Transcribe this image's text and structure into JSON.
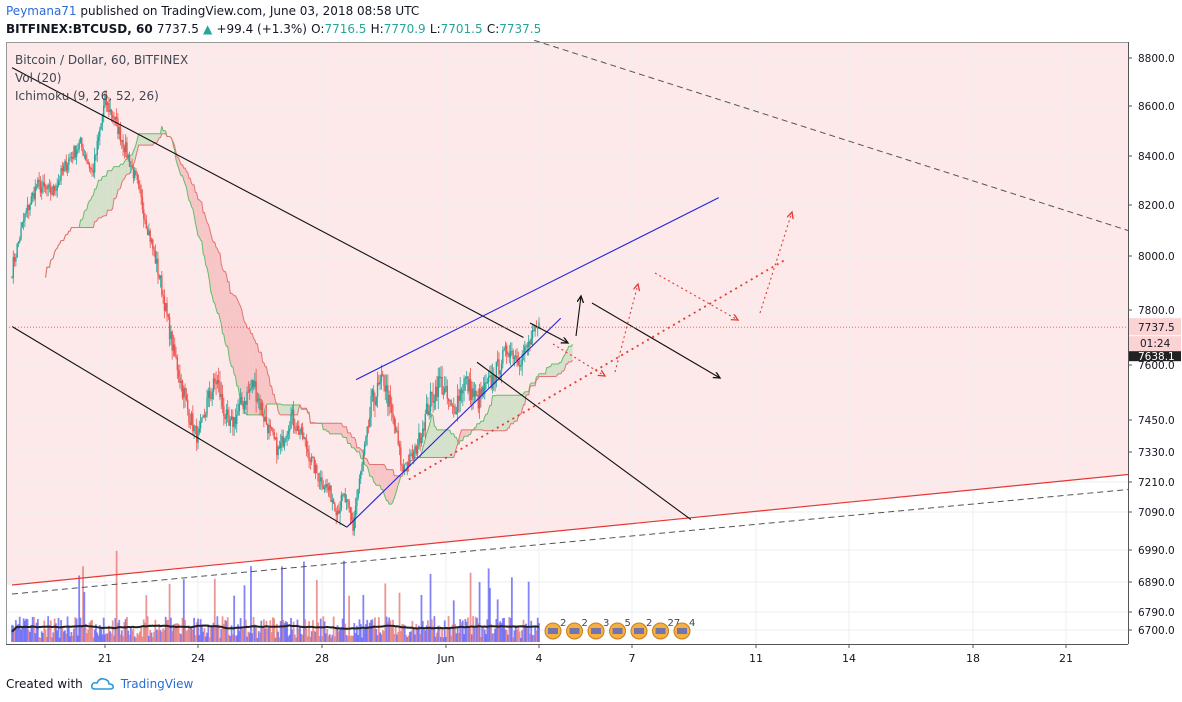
{
  "header": {
    "author": "Peymana71",
    "published": "published on TradingView.com, June 03, 2018 08:58 UTC",
    "symbol": "BITFINEX:BTCUSD, 60",
    "last": "7737.5",
    "change_arrow": "▲",
    "change": "+99.4 (+1.3%)",
    "open_label": "O:",
    "open": "7716.5",
    "high_label": "H:",
    "high": "7770.9",
    "low_label": "L:",
    "low": "7701.5",
    "close_label": "C:",
    "close": "7737.5"
  },
  "legend": {
    "line1": "Bitcoin / Dollar, 60, BITFINEX",
    "line2": "Vol (20)",
    "line3": "Ichimoku (9, 26, 52, 26)"
  },
  "chart_data": {
    "type": "line",
    "series_names": [
      "Bitcoin / Dollar, 60, BITFINEX",
      "Vol (20)",
      "Ichimoku (9, 26, 52, 26)"
    ],
    "price_axis_labels": [
      8800,
      8600,
      8400,
      8200,
      8000,
      7800,
      7600,
      7450,
      7330,
      7210,
      7090,
      6990,
      6890,
      6790,
      6700
    ],
    "price_axis_text": [
      "8800.0",
      "8600.0",
      "8400.0",
      "8200.0",
      "8000.0",
      "7800.0",
      "7600.0",
      "7450.0",
      "7330.0",
      "7210.0",
      "7090.0",
      "6990.0",
      "6890.0",
      "6790.0",
      "6700.0"
    ],
    "last_price_label": "7737.5",
    "countdown_label": "01:24",
    "other_price_label": "7638.1",
    "x_ticks": [
      "21",
      "24",
      "28",
      "Jun",
      "4",
      "7",
      "11",
      "14",
      "18",
      "21"
    ],
    "x_tick_pos": [
      2,
      5,
      9,
      13,
      16,
      19,
      23,
      26,
      30,
      33
    ],
    "close_path": [
      {
        "d": -1.0,
        "p": 7950
      },
      {
        "d": -0.6,
        "p": 8150
      },
      {
        "d": -0.2,
        "p": 8280
      },
      {
        "d": 0.3,
        "p": 8250
      },
      {
        "d": 0.8,
        "p": 8380
      },
      {
        "d": 1.2,
        "p": 8450
      },
      {
        "d": 1.6,
        "p": 8330
      },
      {
        "d": 2.0,
        "p": 8620
      },
      {
        "d": 2.3,
        "p": 8550
      },
      {
        "d": 2.6,
        "p": 8450
      },
      {
        "d": 3.0,
        "p": 8300
      },
      {
        "d": 3.4,
        "p": 8100
      },
      {
        "d": 3.8,
        "p": 7900
      },
      {
        "d": 4.2,
        "p": 7650
      },
      {
        "d": 4.6,
        "p": 7500
      },
      {
        "d": 5.0,
        "p": 7380
      },
      {
        "d": 5.3,
        "p": 7500
      },
      {
        "d": 5.6,
        "p": 7560
      },
      {
        "d": 6.0,
        "p": 7420
      },
      {
        "d": 6.4,
        "p": 7490
      },
      {
        "d": 6.8,
        "p": 7550
      },
      {
        "d": 7.2,
        "p": 7440
      },
      {
        "d": 7.6,
        "p": 7330
      },
      {
        "d": 8.0,
        "p": 7460
      },
      {
        "d": 8.4,
        "p": 7380
      },
      {
        "d": 8.8,
        "p": 7250
      },
      {
        "d": 9.2,
        "p": 7180
      },
      {
        "d": 9.5,
        "p": 7100
      },
      {
        "d": 9.7,
        "p": 7150
      },
      {
        "d": 10.0,
        "p": 7050
      },
      {
        "d": 10.3,
        "p": 7280
      },
      {
        "d": 10.6,
        "p": 7500
      },
      {
        "d": 11.0,
        "p": 7560
      },
      {
        "d": 11.4,
        "p": 7400
      },
      {
        "d": 11.6,
        "p": 7250
      },
      {
        "d": 12.0,
        "p": 7330
      },
      {
        "d": 12.4,
        "p": 7480
      },
      {
        "d": 12.8,
        "p": 7560
      },
      {
        "d": 13.2,
        "p": 7470
      },
      {
        "d": 13.6,
        "p": 7560
      },
      {
        "d": 14.0,
        "p": 7500
      },
      {
        "d": 14.5,
        "p": 7560
      },
      {
        "d": 15.0,
        "p": 7660
      },
      {
        "d": 15.4,
        "p": 7620
      },
      {
        "d": 15.8,
        "p": 7700
      },
      {
        "d": 16.0,
        "p": 7737
      }
    ],
    "bullish_channel": {
      "lower": [
        {
          "d": 9.8,
          "p": 7050
        },
        {
          "d": 16.7,
          "p": 7770
        }
      ],
      "upper": [
        {
          "d": 10.1,
          "p": 7560
        },
        {
          "d": 21.8,
          "p": 8230
        }
      ]
    },
    "bearish_channel": {
      "upper": [
        {
          "d": -1.0,
          "p": 8760
        },
        {
          "d": 15.5,
          "p": 7700
        }
      ],
      "lower": [
        {
          "d": -1.0,
          "p": 7740
        },
        {
          "d": 9.8,
          "p": 7050
        }
      ],
      "projection": [
        {
          "d": 15.5,
          "p": 7640
        },
        {
          "d": 20.0,
          "p": 7170
        }
      ]
    },
    "support_red_line": [
      {
        "d": -1.0,
        "p": 6880
      },
      {
        "d": 35.0,
        "p": 7240
      }
    ],
    "dashed_lines": [
      [
        {
          "d": -1.0,
          "p": 6850
        },
        {
          "d": 35.0,
          "p": 7180
        }
      ],
      [
        {
          "d": 14.0,
          "p": 8950
        },
        {
          "d": 35.0,
          "p": 8100
        }
      ]
    ],
    "dotted_red_trend": [
      {
        "d": 11.8,
        "p": 7220
      },
      {
        "d": 24.0,
        "p": 7990
      }
    ],
    "volume_indicator_values": [
      2,
      2,
      3,
      5,
      2,
      27,
      4
    ]
  },
  "footer": {
    "created": "Created with",
    "brand": "TradingView"
  },
  "colors": {
    "bear_red": "#ef5350",
    "bull_blue": "#2196f3",
    "pink_bg": "#fde5e5",
    "channel_blue": "#2222dd",
    "text_dark": "#131722"
  }
}
